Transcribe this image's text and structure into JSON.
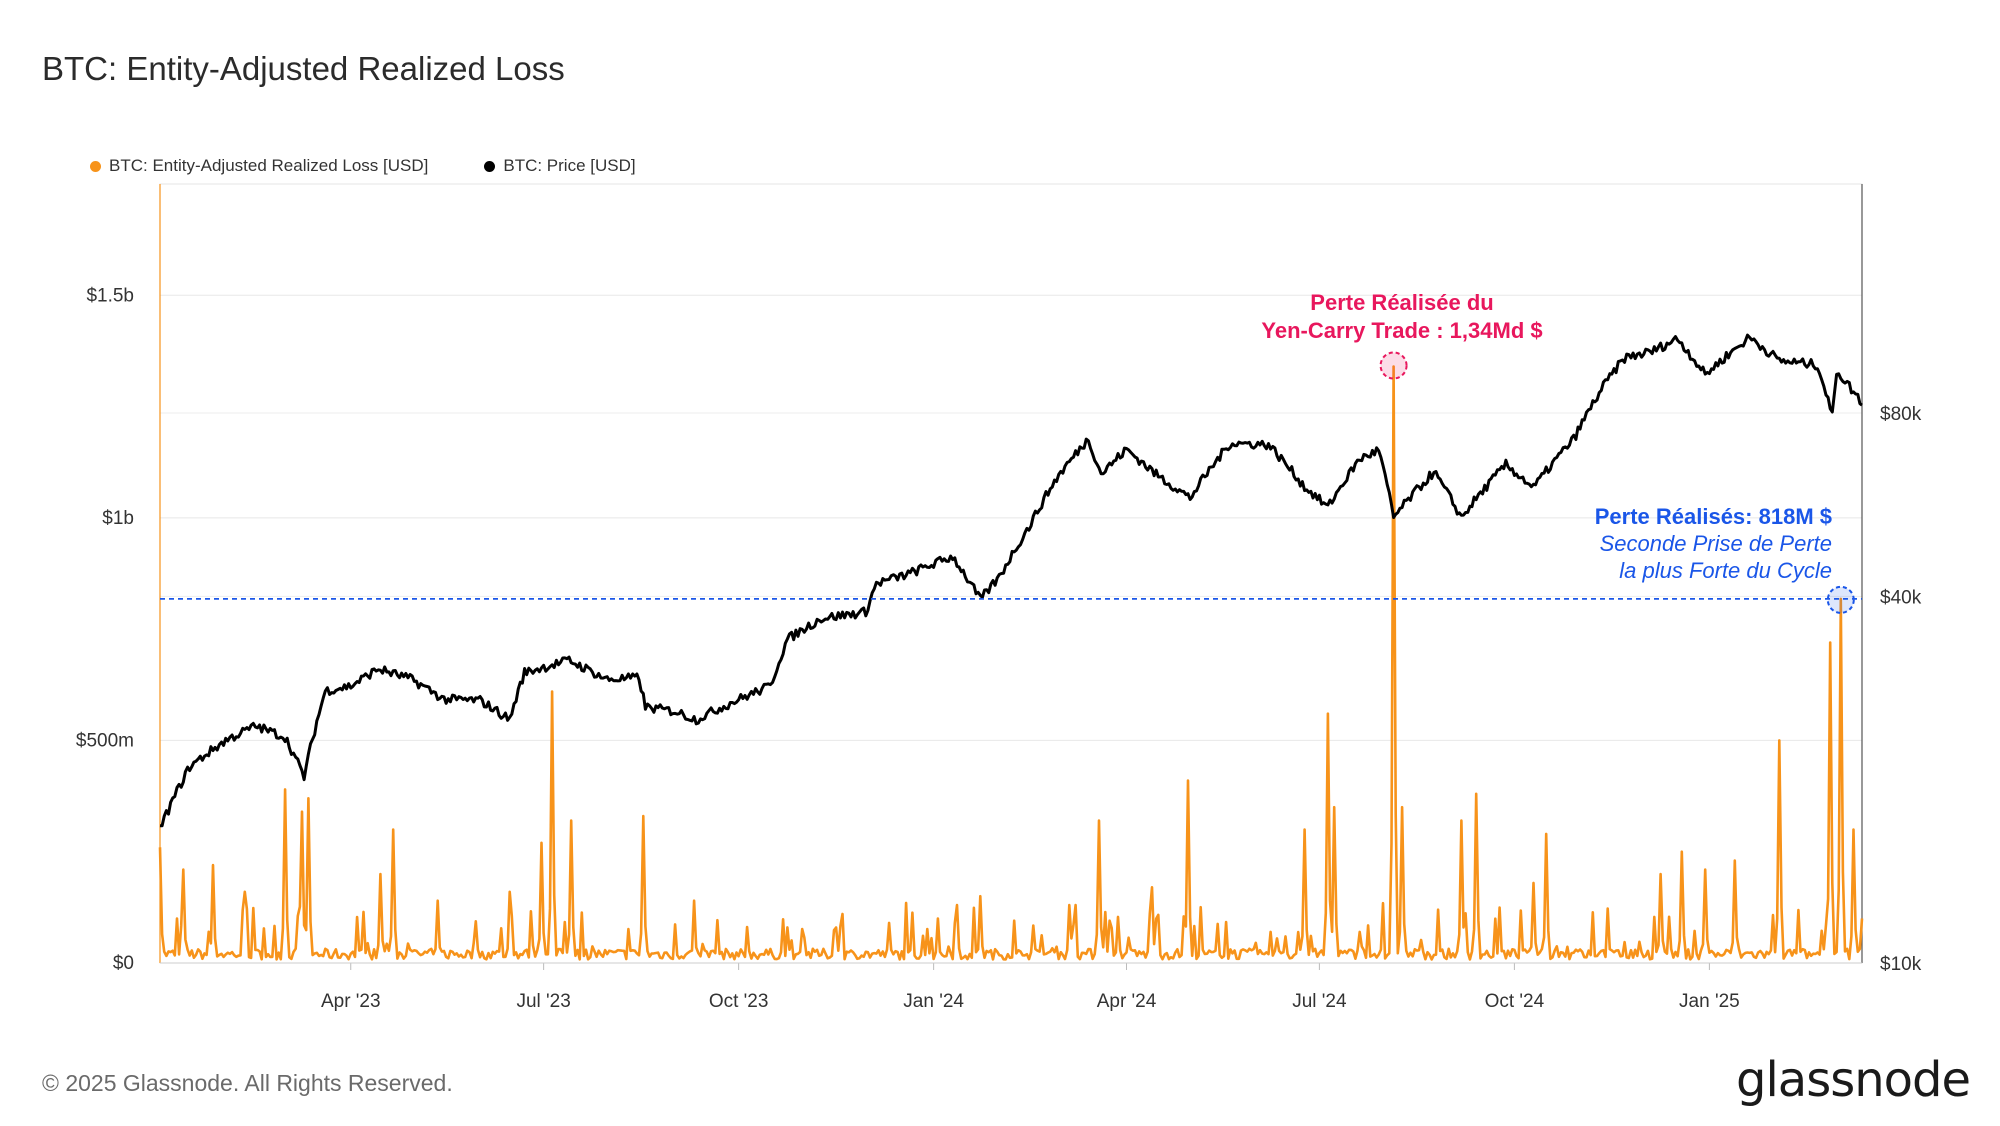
{
  "title": "BTC: Entity-Adjusted Realized Loss",
  "legend": [
    {
      "label": "BTC: Entity-Adjusted Realized Loss [USD]",
      "color": "#f7931a"
    },
    {
      "label": "BTC: Price [USD]",
      "color": "#000000"
    }
  ],
  "footer": "© 2025 Glassnode. All Rights Reserved.",
  "logo": "glassnode",
  "chart_data": {
    "type": "line",
    "title": "BTC: Entity-Adjusted Realized Loss",
    "x_range": [
      "2023-01-01",
      "2025-03-14"
    ],
    "x_ticks": [
      "Apr '23",
      "Jul '23",
      "Oct '23",
      "Jan '24",
      "Apr '24",
      "Jul '24",
      "Oct '24",
      "Jan '25"
    ],
    "x_tick_dates": [
      "2023-04-01",
      "2023-07-01",
      "2023-10-01",
      "2024-01-01",
      "2024-04-01",
      "2024-07-01",
      "2024-10-01",
      "2025-01-01"
    ],
    "y_left": {
      "ticks": [
        "$0",
        "$500m",
        "$1b",
        "$1.5b"
      ],
      "tick_values": [
        0,
        500000000,
        1000000000,
        1500000000
      ],
      "range": [
        0,
        1750000000
      ]
    },
    "y_right": {
      "scale": "log",
      "ticks": [
        "$10k",
        "$40k",
        "$80k"
      ],
      "tick_values": [
        10000,
        40000,
        80000
      ]
    },
    "grid": true,
    "legend_position": "top-left",
    "series": [
      {
        "name": "BTC: Price [USD]",
        "color": "#000000",
        "axis": "right",
        "points": [
          [
            "2023-01-01",
            16600
          ],
          [
            "2023-01-15",
            21000
          ],
          [
            "2023-02-01",
            23200
          ],
          [
            "2023-02-15",
            24500
          ],
          [
            "2023-03-01",
            23500
          ],
          [
            "2023-03-10",
            20200
          ],
          [
            "2023-03-20",
            28000
          ],
          [
            "2023-04-01",
            28500
          ],
          [
            "2023-04-14",
            30400
          ],
          [
            "2023-04-30",
            29200
          ],
          [
            "2023-05-15",
            27100
          ],
          [
            "2023-06-01",
            27000
          ],
          [
            "2023-06-15",
            25100
          ],
          [
            "2023-06-22",
            30000
          ],
          [
            "2023-07-01",
            30600
          ],
          [
            "2023-07-13",
            31400
          ],
          [
            "2023-07-31",
            29200
          ],
          [
            "2023-08-15",
            29400
          ],
          [
            "2023-08-18",
            26300
          ],
          [
            "2023-09-01",
            25900
          ],
          [
            "2023-09-11",
            25100
          ],
          [
            "2023-09-30",
            27000
          ],
          [
            "2023-10-16",
            28500
          ],
          [
            "2023-10-24",
            34000
          ],
          [
            "2023-11-09",
            36800
          ],
          [
            "2023-11-30",
            37700
          ],
          [
            "2023-12-05",
            42000
          ],
          [
            "2023-12-20",
            43500
          ],
          [
            "2024-01-10",
            46500
          ],
          [
            "2024-01-23",
            39500
          ],
          [
            "2024-02-01",
            43000
          ],
          [
            "2024-02-15",
            52000
          ],
          [
            "2024-02-28",
            62500
          ],
          [
            "2024-03-14",
            72500
          ],
          [
            "2024-03-20",
            63500
          ],
          [
            "2024-04-01",
            69700
          ],
          [
            "2024-04-15",
            63400
          ],
          [
            "2024-05-01",
            58000
          ],
          [
            "2024-05-20",
            71400
          ],
          [
            "2024-06-07",
            71000
          ],
          [
            "2024-06-24",
            60500
          ],
          [
            "2024-07-05",
            56000
          ],
          [
            "2024-07-20",
            67200
          ],
          [
            "2024-07-29",
            69500
          ],
          [
            "2024-08-05",
            53900
          ],
          [
            "2024-08-24",
            64000
          ],
          [
            "2024-09-06",
            53900
          ],
          [
            "2024-09-27",
            65800
          ],
          [
            "2024-10-10",
            60300
          ],
          [
            "2024-10-29",
            72500
          ],
          [
            "2024-11-12",
            88500
          ],
          [
            "2024-11-22",
            98500
          ],
          [
            "2024-12-05",
            101000
          ],
          [
            "2024-12-17",
            106000
          ],
          [
            "2024-12-30",
            92500
          ],
          [
            "2025-01-20",
            106500
          ],
          [
            "2025-02-03",
            97500
          ],
          [
            "2025-02-21",
            96000
          ],
          [
            "2025-02-28",
            79000
          ],
          [
            "2025-03-02",
            94000
          ],
          [
            "2025-03-14",
            83000
          ]
        ]
      },
      {
        "name": "BTC: Entity-Adjusted Realized Loss [USD]",
        "color": "#f7931a",
        "axis": "left",
        "baseline": 20000000,
        "spikes": [
          [
            "2023-01-01",
            260000000
          ],
          [
            "2023-01-12",
            210000000
          ],
          [
            "2023-01-26",
            220000000
          ],
          [
            "2023-02-10",
            160000000
          ],
          [
            "2023-03-01",
            390000000
          ],
          [
            "2023-03-09",
            340000000
          ],
          [
            "2023-03-12",
            370000000
          ],
          [
            "2023-04-15",
            200000000
          ],
          [
            "2023-04-21",
            300000000
          ],
          [
            "2023-05-12",
            140000000
          ],
          [
            "2023-06-15",
            160000000
          ],
          [
            "2023-06-30",
            270000000
          ],
          [
            "2023-07-05",
            610000000
          ],
          [
            "2023-07-14",
            320000000
          ],
          [
            "2023-08-17",
            330000000
          ],
          [
            "2023-09-10",
            140000000
          ],
          [
            "2023-10-24",
            80000000
          ],
          [
            "2023-12-11",
            90000000
          ],
          [
            "2024-01-03",
            100000000
          ],
          [
            "2024-01-12",
            130000000
          ],
          [
            "2024-01-23",
            150000000
          ],
          [
            "2024-03-05",
            130000000
          ],
          [
            "2024-03-19",
            320000000
          ],
          [
            "2024-04-13",
            170000000
          ],
          [
            "2024-04-30",
            410000000
          ],
          [
            "2024-06-24",
            300000000
          ],
          [
            "2024-07-05",
            560000000
          ],
          [
            "2024-07-08",
            350000000
          ],
          [
            "2024-08-05",
            1340000000
          ],
          [
            "2024-08-09",
            350000000
          ],
          [
            "2024-09-06",
            320000000
          ],
          [
            "2024-09-13",
            380000000
          ],
          [
            "2024-10-10",
            180000000
          ],
          [
            "2024-10-16",
            290000000
          ],
          [
            "2024-12-09",
            200000000
          ],
          [
            "2024-12-19",
            250000000
          ],
          [
            "2024-12-30",
            210000000
          ],
          [
            "2025-01-13",
            230000000
          ],
          [
            "2025-02-03",
            500000000
          ],
          [
            "2025-02-27",
            720000000
          ],
          [
            "2025-03-04",
            818000000
          ],
          [
            "2025-03-10",
            300000000
          ],
          [
            "2025-03-14",
            100000000
          ]
        ]
      }
    ],
    "reference_line": {
      "value": 818000000,
      "style": "dashed",
      "color": "#1a56e8"
    },
    "annotations": [
      {
        "lines": [
          "Perte Réalisée du",
          "Yen-Carry Trade : 1,34Md $"
        ],
        "date": "2024-08-05",
        "value": 1340000000,
        "color": "#e8175d"
      },
      {
        "lines": [
          "Perte Réalisés: 818M $",
          "Seconde Prise de Perte",
          "la plus Forte du Cycle"
        ],
        "date": "2025-03-04",
        "value": 818000000,
        "color": "#1a56e8"
      }
    ]
  }
}
